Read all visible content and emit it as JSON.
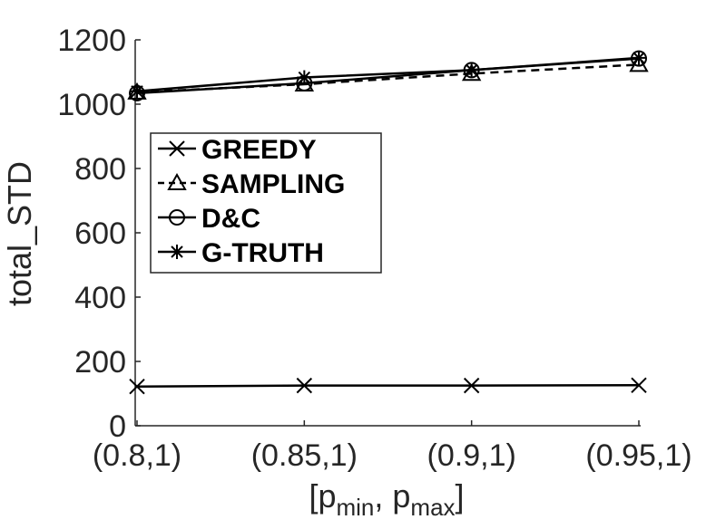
{
  "chart_data": {
    "type": "line",
    "categories": [
      "(0.8,1)",
      "(0.85,1)",
      "(0.9,1)",
      "(0.95,1)"
    ],
    "xlabel": {
      "main": "[p",
      "sub1": "min",
      "mid": ", p",
      "sub2": "max",
      "end": "]"
    },
    "ylabel": "total_STD",
    "ylim": [
      0,
      1200
    ],
    "yticks": [
      0,
      200,
      400,
      600,
      800,
      1000,
      1200
    ],
    "grid": false,
    "legend_position": "upper-left",
    "series": [
      {
        "name": "GREEDY",
        "marker": "x",
        "dash": "solid",
        "values": [
          122,
          125,
          125,
          126
        ]
      },
      {
        "name": "SAMPLING",
        "marker": "triangle",
        "dash": "dashed",
        "values": [
          1037,
          1062,
          1095,
          1123
        ]
      },
      {
        "name": "D&C",
        "marker": "circle",
        "dash": "solid",
        "values": [
          1034,
          1065,
          1106,
          1142
        ]
      },
      {
        "name": "G-TRUTH",
        "marker": "star",
        "dash": "solid",
        "values": [
          1040,
          1083,
          1106,
          1144
        ]
      }
    ]
  }
}
